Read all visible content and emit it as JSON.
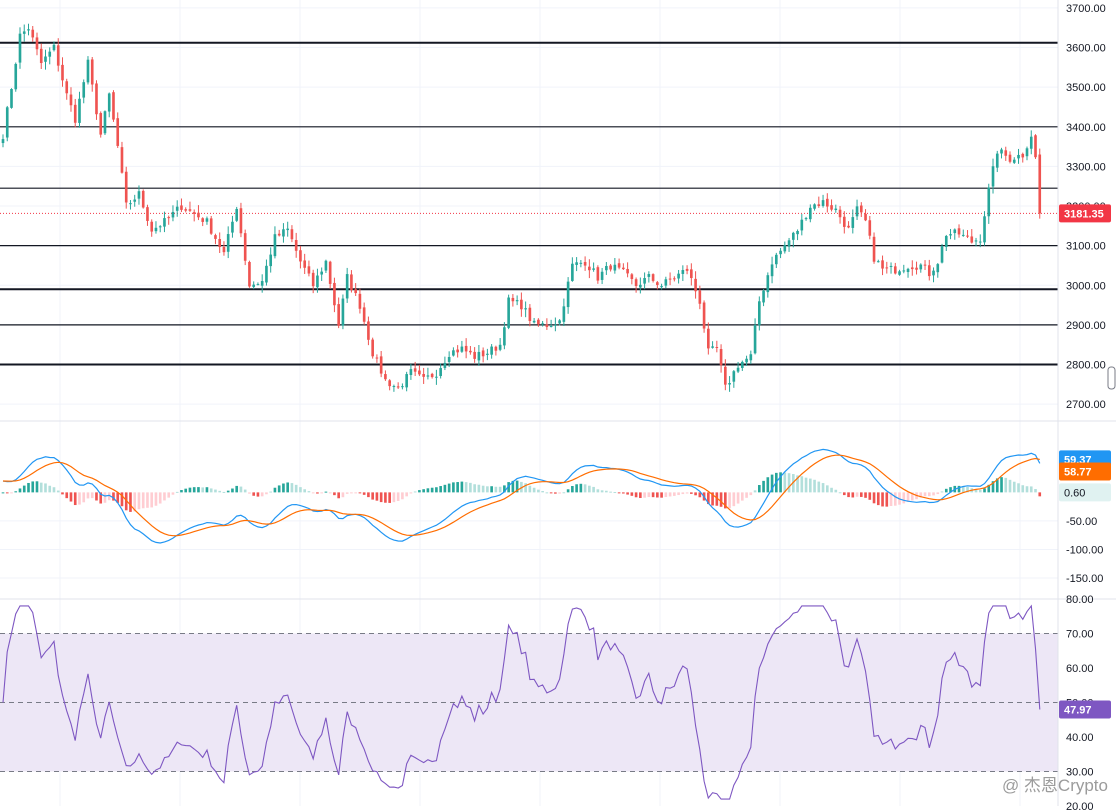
{
  "colors": {
    "up": "#26a69a",
    "down": "#ef5350",
    "macd_line": "#2196f3",
    "signal_line": "#ff6d00",
    "hist_pos_strong": "#26a69a",
    "hist_pos_weak": "#b2dfdb",
    "hist_neg_strong": "#ef5350",
    "hist_neg_weak": "#ffcdd2",
    "rsi_line": "#7e57c2",
    "rsi_band": "#ede7f6",
    "current_price": "#f23645"
  },
  "watermark": "@ 杰恩Crypto",
  "chart_data": [
    {
      "type": "candlestick",
      "ylim": [
        2660,
        3720
      ],
      "ticks": [
        "3700.00",
        "3600.00",
        "3500.00",
        "3400.00",
        "3300.00",
        "3200.00",
        "3100.00",
        "3000.00",
        "2900.00",
        "2800.00",
        "2700.00"
      ],
      "current_price": "3181.35",
      "horizontal_levels": [
        3612,
        3400,
        3245,
        3100,
        2990,
        2900,
        2800
      ],
      "anchors": [
        [
          0,
          3380
        ],
        [
          2,
          3500
        ],
        [
          4,
          3630
        ],
        [
          6,
          3650
        ],
        [
          9,
          3560
        ],
        [
          12,
          3600
        ],
        [
          15,
          3480
        ],
        [
          17,
          3420
        ],
        [
          20,
          3560
        ],
        [
          23,
          3380
        ],
        [
          25,
          3480
        ],
        [
          27,
          3350
        ],
        [
          29,
          3200
        ],
        [
          32,
          3230
        ],
        [
          35,
          3140
        ],
        [
          38,
          3160
        ],
        [
          42,
          3200
        ],
        [
          45,
          3180
        ],
        [
          48,
          3160
        ],
        [
          52,
          3080
        ],
        [
          55,
          3200
        ],
        [
          58,
          3000
        ],
        [
          61,
          3010
        ],
        [
          64,
          3120
        ],
        [
          67,
          3140
        ],
        [
          70,
          3060
        ],
        [
          73,
          3000
        ],
        [
          76,
          3060
        ],
        [
          79,
          2900
        ],
        [
          81,
          3020
        ],
        [
          84,
          2950
        ],
        [
          87,
          2830
        ],
        [
          90,
          2760
        ],
        [
          93,
          2740
        ],
        [
          96,
          2780
        ],
        [
          99,
          2760
        ],
        [
          102,
          2780
        ],
        [
          105,
          2830
        ],
        [
          108,
          2840
        ],
        [
          111,
          2820
        ],
        [
          114,
          2830
        ],
        [
          117,
          2850
        ],
        [
          119,
          2960
        ],
        [
          122,
          2950
        ],
        [
          125,
          2900
        ],
        [
          128,
          2900
        ],
        [
          131,
          2910
        ],
        [
          134,
          3050
        ],
        [
          137,
          3060
        ],
        [
          140,
          3020
        ],
        [
          143,
          3050
        ],
        [
          146,
          3030
        ],
        [
          149,
          3000
        ],
        [
          152,
          3020
        ],
        [
          155,
          3000
        ],
        [
          158,
          3020
        ],
        [
          161,
          3040
        ],
        [
          164,
          2960
        ],
        [
          166,
          2830
        ],
        [
          168,
          2840
        ],
        [
          170,
          2740
        ],
        [
          173,
          2800
        ],
        [
          176,
          2820
        ],
        [
          178,
          2960
        ],
        [
          181,
          3060
        ],
        [
          184,
          3100
        ],
        [
          187,
          3140
        ],
        [
          190,
          3200
        ],
        [
          193,
          3210
        ],
        [
          196,
          3190
        ],
        [
          199,
          3140
        ],
        [
          201,
          3190
        ],
        [
          203,
          3160
        ],
        [
          205,
          3070
        ],
        [
          207,
          3040
        ],
        [
          210,
          3040
        ],
        [
          213,
          3050
        ],
        [
          216,
          3050
        ],
        [
          218,
          3030
        ],
        [
          220,
          3060
        ],
        [
          222,
          3130
        ],
        [
          225,
          3130
        ],
        [
          228,
          3110
        ],
        [
          230,
          3120
        ],
        [
          232,
          3240
        ],
        [
          234,
          3340
        ],
        [
          237,
          3320
        ],
        [
          240,
          3330
        ],
        [
          242,
          3380
        ],
        [
          243,
          3320
        ],
        [
          244,
          3181.35
        ]
      ]
    },
    {
      "type": "line",
      "name": "MACD",
      "ylim": [
        -185,
        125
      ],
      "ticks": [
        "-50.00",
        "-100.00",
        "-150.00"
      ],
      "macd_value": "59.37",
      "signal_value": "58.77",
      "histogram_value": "0.60"
    },
    {
      "type": "line",
      "name": "RSI",
      "ylim": [
        20,
        80
      ],
      "ticks": [
        "80.00",
        "70.00",
        "60.00",
        "50.00",
        "40.00",
        "30.00",
        "20.00"
      ],
      "value": "47.97",
      "bands": [
        30,
        50,
        70
      ]
    }
  ]
}
